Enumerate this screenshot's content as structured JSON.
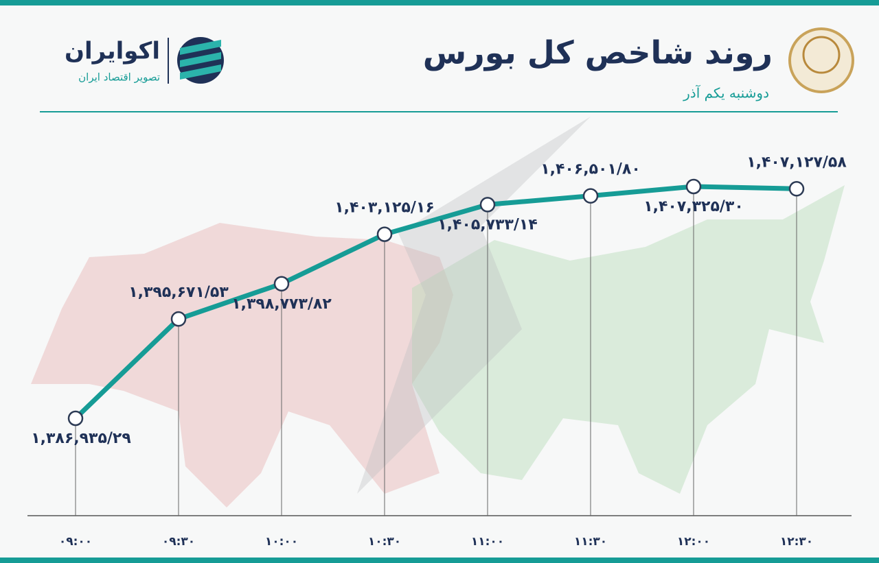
{
  "header": {
    "title": "روند شاخص کل بورس",
    "subtitle": "دوشنبه یکم آذر",
    "brand": "اکوایران",
    "brand_tagline": "تصویر اقتصاد ایران"
  },
  "chart_data": {
    "type": "line",
    "categories": [
      "۰۹:۰۰",
      "۰۹:۳۰",
      "۱۰:۰۰",
      "۱۰:۳۰",
      "۱۱:۰۰",
      "۱۱:۳۰",
      "۱۲:۰۰",
      "۱۲:۳۰"
    ],
    "values": [
      1386935.29,
      1395671.53,
      1398773.82,
      1403125.16,
      1405733.14,
      1406501.8,
      1407325.3,
      1407127.58
    ],
    "value_labels": [
      "۱,۳۸۶,۹۳۵/۲۹",
      "۱,۳۹۵,۶۷۱/۵۳",
      "۱,۳۹۸,۷۷۳/۸۲",
      "۱,۴۰۳,۱۲۵/۱۶",
      "۱,۴۰۵,۷۳۳/۱۴",
      "۱,۴۰۶,۵۰۱/۸۰",
      "۱,۴۰۷,۳۲۵/۳۰",
      "۱,۴۰۷,۱۲۷/۵۸"
    ],
    "color": "#169c96"
  }
}
